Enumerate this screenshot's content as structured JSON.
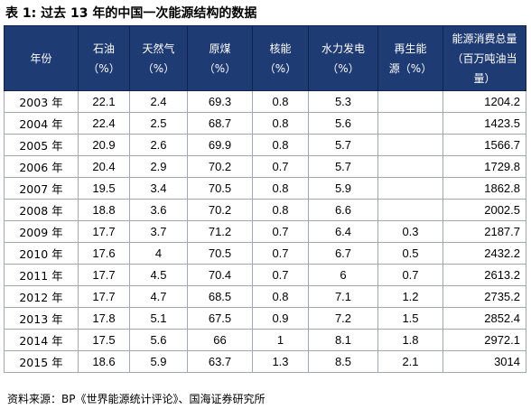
{
  "title": "表 1:  过去 13 年的中国一次能源结构的数据",
  "table": {
    "headers": [
      {
        "lines": [
          "年份"
        ]
      },
      {
        "lines": [
          "石油",
          "（%）"
        ]
      },
      {
        "lines": [
          "天然气",
          "（%）"
        ]
      },
      {
        "lines": [
          "原煤",
          "（%）"
        ]
      },
      {
        "lines": [
          "核能",
          "（%）"
        ]
      },
      {
        "lines": [
          "水力发电",
          "（%）"
        ]
      },
      {
        "lines": [
          "再生能",
          "源（%）"
        ]
      },
      {
        "lines": [
          "能源消费总量",
          "（百万吨油当",
          "量）"
        ]
      }
    ],
    "rows": [
      {
        "year": "2003 年",
        "oil": "22.1",
        "gas": "2.4",
        "coal": "69.3",
        "nuclear": "0.8",
        "hydro": "5.3",
        "renewable": "",
        "total": "1204.2"
      },
      {
        "year": "2004 年",
        "oil": "22.4",
        "gas": "2.5",
        "coal": "68.7",
        "nuclear": "0.8",
        "hydro": "5.6",
        "renewable": "",
        "total": "1423.5"
      },
      {
        "year": "2005 年",
        "oil": "20.9",
        "gas": "2.6",
        "coal": "69.9",
        "nuclear": "0.8",
        "hydro": "5.7",
        "renewable": "",
        "total": "1566.7"
      },
      {
        "year": "2006 年",
        "oil": "20.4",
        "gas": "2.9",
        "coal": "70.2",
        "nuclear": "0.7",
        "hydro": "5.7",
        "renewable": "",
        "total": "1729.8"
      },
      {
        "year": "2007 年",
        "oil": "19.5",
        "gas": "3.4",
        "coal": "70.5",
        "nuclear": "0.8",
        "hydro": "5.9",
        "renewable": "",
        "total": "1862.8"
      },
      {
        "year": "2008 年",
        "oil": "18.8",
        "gas": "3.6",
        "coal": "70.2",
        "nuclear": "0.8",
        "hydro": "6.6",
        "renewable": "",
        "total": "2002.5"
      },
      {
        "year": "2009 年",
        "oil": "17.7",
        "gas": "3.7",
        "coal": "71.2",
        "nuclear": "0.7",
        "hydro": "6.4",
        "renewable": "0.3",
        "total": "2187.7"
      },
      {
        "year": "2010 年",
        "oil": "17.6",
        "gas": "4",
        "coal": "70.5",
        "nuclear": "0.7",
        "hydro": "6.7",
        "renewable": "0.5",
        "total": "2432.2"
      },
      {
        "year": "2011 年",
        "oil": "17.7",
        "gas": "4.5",
        "coal": "70.4",
        "nuclear": "0.7",
        "hydro": "6",
        "renewable": "0.7",
        "total": "2613.2"
      },
      {
        "year": "2012 年",
        "oil": "17.7",
        "gas": "4.7",
        "coal": "68.5",
        "nuclear": "0.8",
        "hydro": "7.1",
        "renewable": "1.2",
        "total": "2735.2"
      },
      {
        "year": "2013 年",
        "oil": "17.8",
        "gas": "5.1",
        "coal": "67.5",
        "nuclear": "0.9",
        "hydro": "7.2",
        "renewable": "1.5",
        "total": "2852.4"
      },
      {
        "year": "2014 年",
        "oil": "17.5",
        "gas": "5.6",
        "coal": "66",
        "nuclear": "1",
        "hydro": "8.1",
        "renewable": "1.8",
        "total": "2972.1"
      },
      {
        "year": "2015 年",
        "oil": "18.6",
        "gas": "5.9",
        "coal": "63.7",
        "nuclear": "1.3",
        "hydro": "8.5",
        "renewable": "2.1",
        "total": "3014"
      }
    ]
  },
  "source": "资料来源：BP《世界能源统计评论》、国海证券研究所",
  "colors": {
    "header_bg": "#1f3b73",
    "header_text": "#ffffff",
    "grid": "#9fa8b8"
  }
}
